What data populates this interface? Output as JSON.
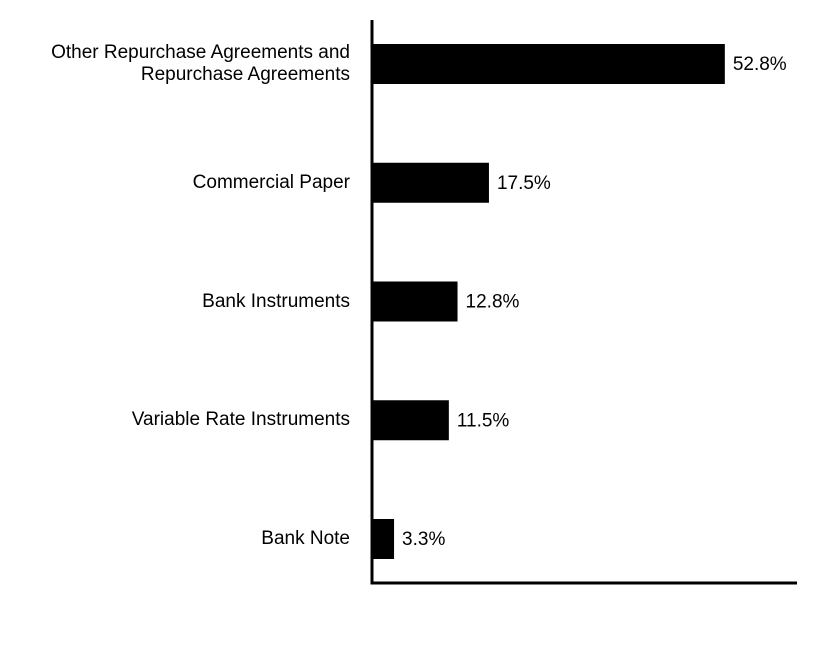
{
  "chart_data": {
    "type": "hbar",
    "categories": [
      "Other Repurchase Agreements and Repurchase Agreements",
      "Commercial Paper",
      "Bank Instruments",
      "Variable Rate Instruments",
      "Bank Note"
    ],
    "values": [
      52.8,
      17.5,
      12.8,
      11.5,
      3.3
    ],
    "value_labels": [
      "52.8%",
      "17.5%",
      "12.8%",
      "11.5%",
      "3.3%"
    ],
    "color": "#000000",
    "xlim": [
      0,
      63.6
    ]
  }
}
